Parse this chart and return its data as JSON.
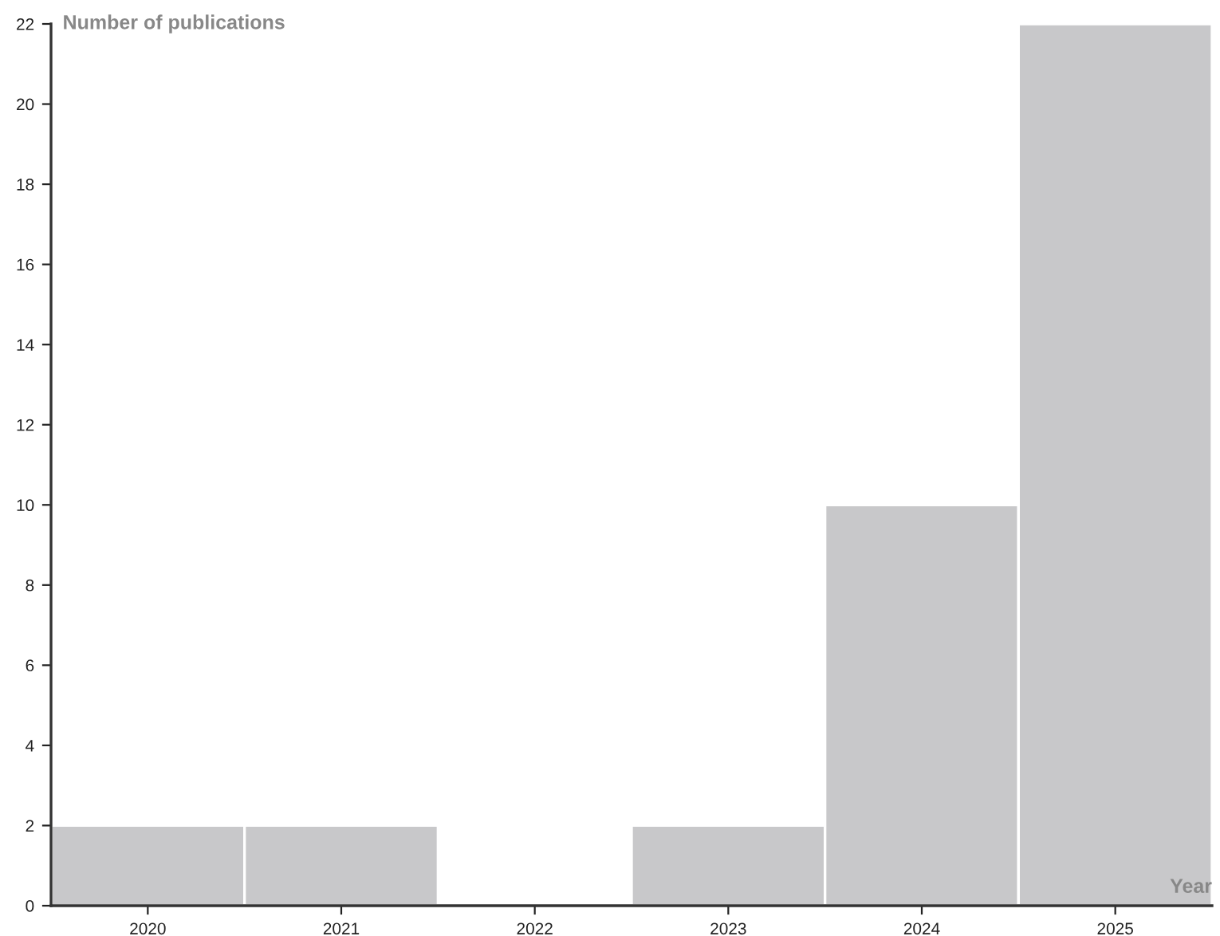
{
  "chart_data": {
    "type": "bar",
    "xlabel": "Year",
    "ylabel": "Number of publications",
    "categories": [
      "2020",
      "2021",
      "2022",
      "2023",
      "2024",
      "2025"
    ],
    "values": [
      2,
      2,
      0,
      2,
      10,
      22
    ],
    "color": "#c8c8ca",
    "ylim": [
      0,
      22
    ],
    "yticks": [
      0,
      2,
      4,
      6,
      8,
      10,
      12,
      14,
      16,
      18,
      20,
      22
    ],
    "grid": false,
    "legend": false
  }
}
